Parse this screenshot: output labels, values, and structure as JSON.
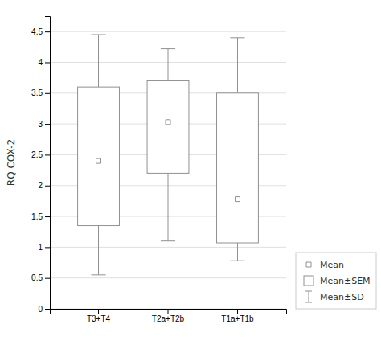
{
  "chart_data": {
    "type": "box",
    "ylabel": "RQ COX-2",
    "categories": [
      "T3+T4",
      "T2a+T2b",
      "T1a+T1b"
    ],
    "boxes": [
      {
        "mean": 2.4,
        "q1": 1.35,
        "q3": 3.6,
        "whisker_low": 0.55,
        "whisker_high": 4.45
      },
      {
        "mean": 3.03,
        "q1": 2.2,
        "q3": 3.7,
        "whisker_low": 1.1,
        "whisker_high": 4.22
      },
      {
        "mean": 1.78,
        "q1": 1.07,
        "q3": 3.5,
        "whisker_low": 0.78,
        "whisker_high": 4.4
      }
    ],
    "color": "#909090",
    "marker": "square",
    "ylim": [
      0,
      4.75
    ],
    "yticks": [
      0,
      0.5,
      1,
      1.5,
      2,
      2.5,
      3,
      3.5,
      4,
      4.5
    ],
    "grid": true,
    "legend_labels": [
      "Mean",
      "Mean±SEM",
      "Mean±SD"
    ]
  }
}
